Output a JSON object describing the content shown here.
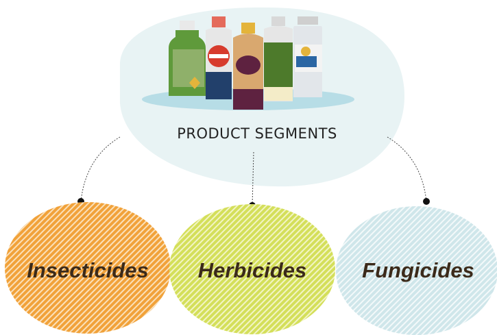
{
  "title": "PRODUCT SEGMENTS",
  "nodes": [
    {
      "label": "Insecticides"
    },
    {
      "label": "Herbicides"
    },
    {
      "label": "Fungicides"
    }
  ]
}
